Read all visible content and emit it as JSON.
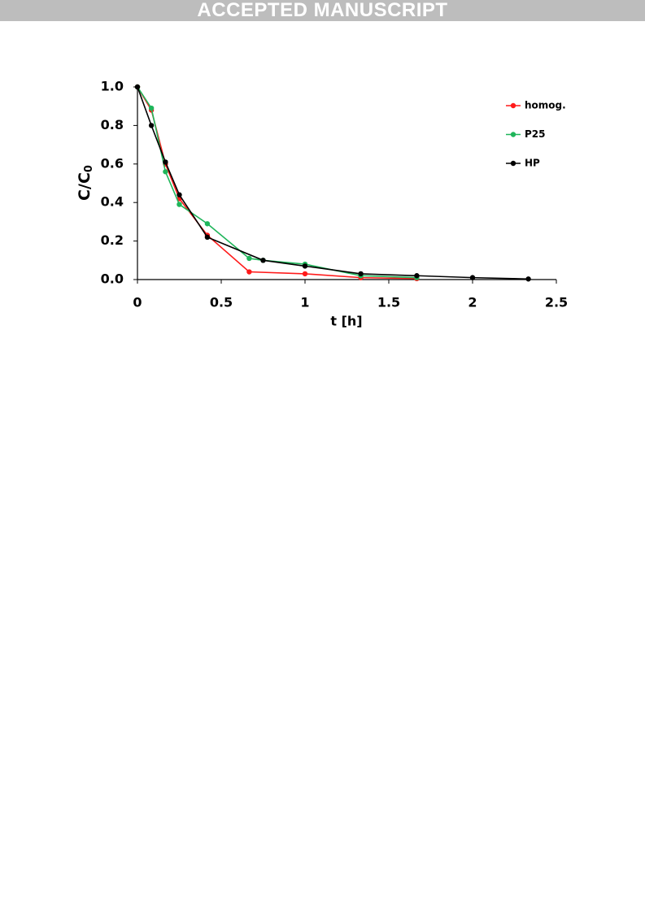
{
  "banner": "ACCEPTED MANUSCRIPT",
  "chart_data": {
    "type": "line",
    "x_label": "t [h]",
    "y_label": {
      "main": "C/C",
      "sub": "0"
    },
    "xlim": [
      0,
      2.5
    ],
    "xticks": [
      0,
      0.5,
      1,
      1.5,
      2,
      2.5
    ],
    "ylim": [
      0,
      1
    ],
    "yticks": [
      {
        "value": 0,
        "label": "0.0"
      },
      0.2,
      0.4,
      0.6,
      0.8,
      {
        "value": 1,
        "label": "1.0"
      }
    ],
    "grid": false,
    "legend": "upper right",
    "series": [
      {
        "name": "homog.",
        "color": "#ff1a1a",
        "x": [
          0,
          0.083,
          0.167,
          0.25,
          0.417,
          0.667,
          1.0,
          1.333,
          1.667
        ],
        "values": [
          1.0,
          0.88,
          0.6,
          0.42,
          0.23,
          0.04,
          0.03,
          0.01,
          0.005
        ]
      },
      {
        "name": "P25",
        "color": "#1fb55a",
        "x": [
          0,
          0.083,
          0.167,
          0.25,
          0.417,
          0.667,
          0.75,
          1.0,
          1.333,
          1.667
        ],
        "values": [
          1.0,
          0.89,
          0.56,
          0.39,
          0.29,
          0.11,
          0.1,
          0.08,
          0.02,
          0.01
        ]
      },
      {
        "name": "HP",
        "color": "#000000",
        "x": [
          0,
          0.083,
          0.167,
          0.25,
          0.417,
          0.75,
          1.0,
          1.333,
          1.667,
          2.0,
          2.333
        ],
        "values": [
          1.0,
          0.8,
          0.61,
          0.44,
          0.22,
          0.1,
          0.07,
          0.03,
          0.02,
          0.01,
          0.003
        ]
      }
    ]
  }
}
